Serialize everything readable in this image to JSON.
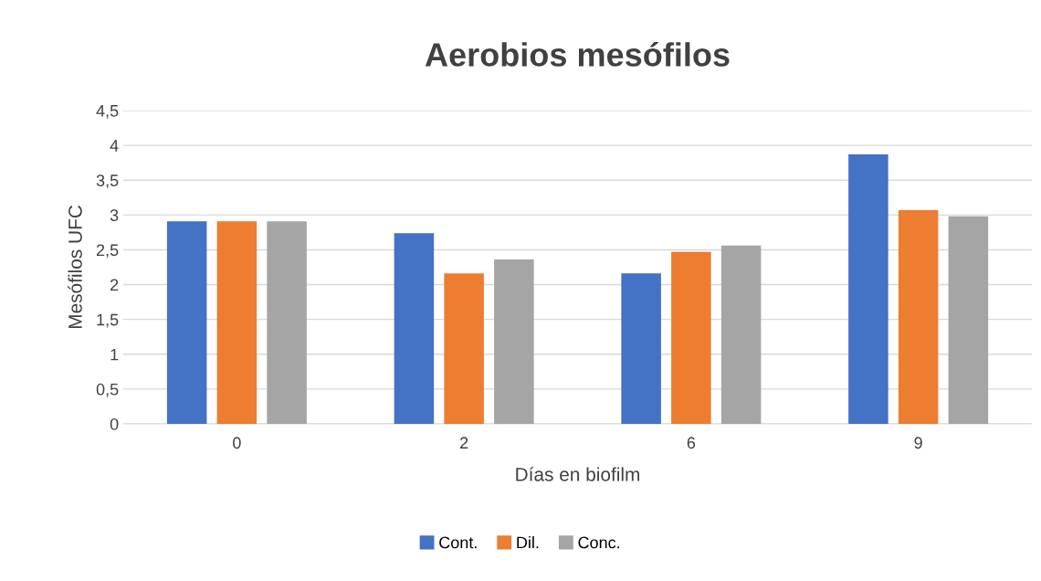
{
  "chart_data": {
    "type": "bar",
    "title": "Aerobios mesófilos",
    "xlabel": "Días en biofilm",
    "ylabel": "Mesófilos UFC",
    "categories": [
      "0",
      "2",
      "6",
      "9"
    ],
    "series": [
      {
        "name": "Cont.",
        "color": "#4472c4",
        "values": [
          2.91,
          2.74,
          2.16,
          3.87
        ]
      },
      {
        "name": "Dil.",
        "color": "#ed7d31",
        "values": [
          2.91,
          2.16,
          2.47,
          3.07
        ]
      },
      {
        "name": "Conc.",
        "color": "#a5a5a5",
        "values": [
          2.91,
          2.36,
          2.56,
          2.98
        ]
      }
    ],
    "ylim": [
      0,
      4.5
    ],
    "yticks": [
      0,
      {
        "value": 0.5,
        "label": "0,5"
      },
      1,
      {
        "value": 1.5,
        "label": "1,5"
      },
      2,
      {
        "value": 2.5,
        "label": "2,5"
      },
      3,
      {
        "value": 3.5,
        "label": "3,5"
      },
      4,
      {
        "value": 4.5,
        "label": "4,5"
      }
    ],
    "grid": "y",
    "legend": "bottom"
  }
}
